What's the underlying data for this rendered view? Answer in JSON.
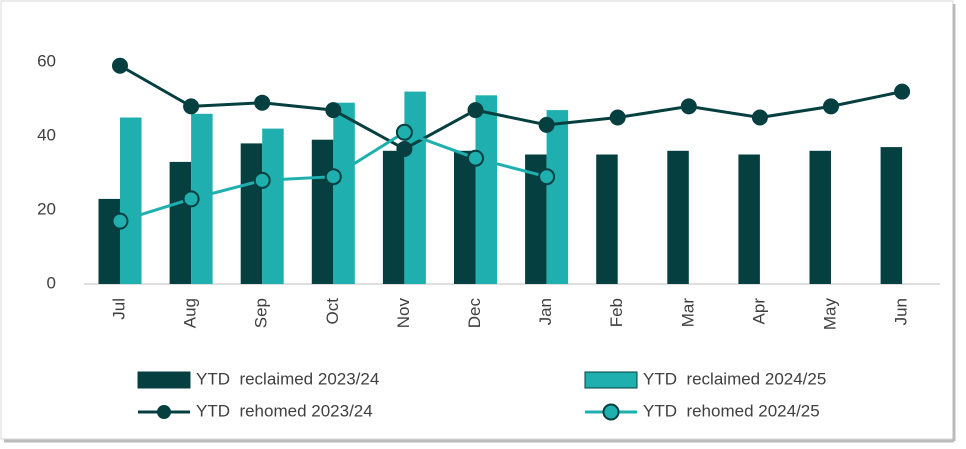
{
  "chart_data": {
    "type": "bar-line",
    "categories": [
      "Jul",
      "Aug",
      "Sep",
      "Oct",
      "Nov",
      "Dec",
      "Jan",
      "Feb",
      "Mar",
      "Apr",
      "May",
      "Jun"
    ],
    "ylim": [
      0,
      68
    ],
    "yticks": [
      0,
      20,
      40,
      60
    ],
    "grid": false,
    "legend": "bottom",
    "series": [
      {
        "name": "YTD  reclaimed 2023/24",
        "type": "bar",
        "color": "#063f40",
        "values": [
          23,
          33,
          38,
          39,
          36,
          36,
          35,
          35,
          36,
          35,
          36,
          37
        ]
      },
      {
        "name": "YTD  reclaimed 2024/25",
        "type": "bar",
        "color": "#20afaf",
        "values": [
          45,
          46,
          42,
          49,
          52,
          51,
          47,
          null,
          null,
          null,
          null,
          null
        ]
      },
      {
        "name": "YTD  rehomed 2023/24",
        "type": "line",
        "color": "#063f40",
        "values": [
          59,
          48,
          49,
          47,
          36.5,
          47,
          43,
          45,
          48,
          45,
          48,
          52
        ]
      },
      {
        "name": "YTD  rehomed 2024/25",
        "type": "line",
        "color": "#20afaf",
        "marker_fill": "#20afaf",
        "values": [
          17,
          23,
          28,
          29,
          41,
          34,
          29,
          null,
          null,
          null,
          null,
          null
        ]
      }
    ]
  }
}
